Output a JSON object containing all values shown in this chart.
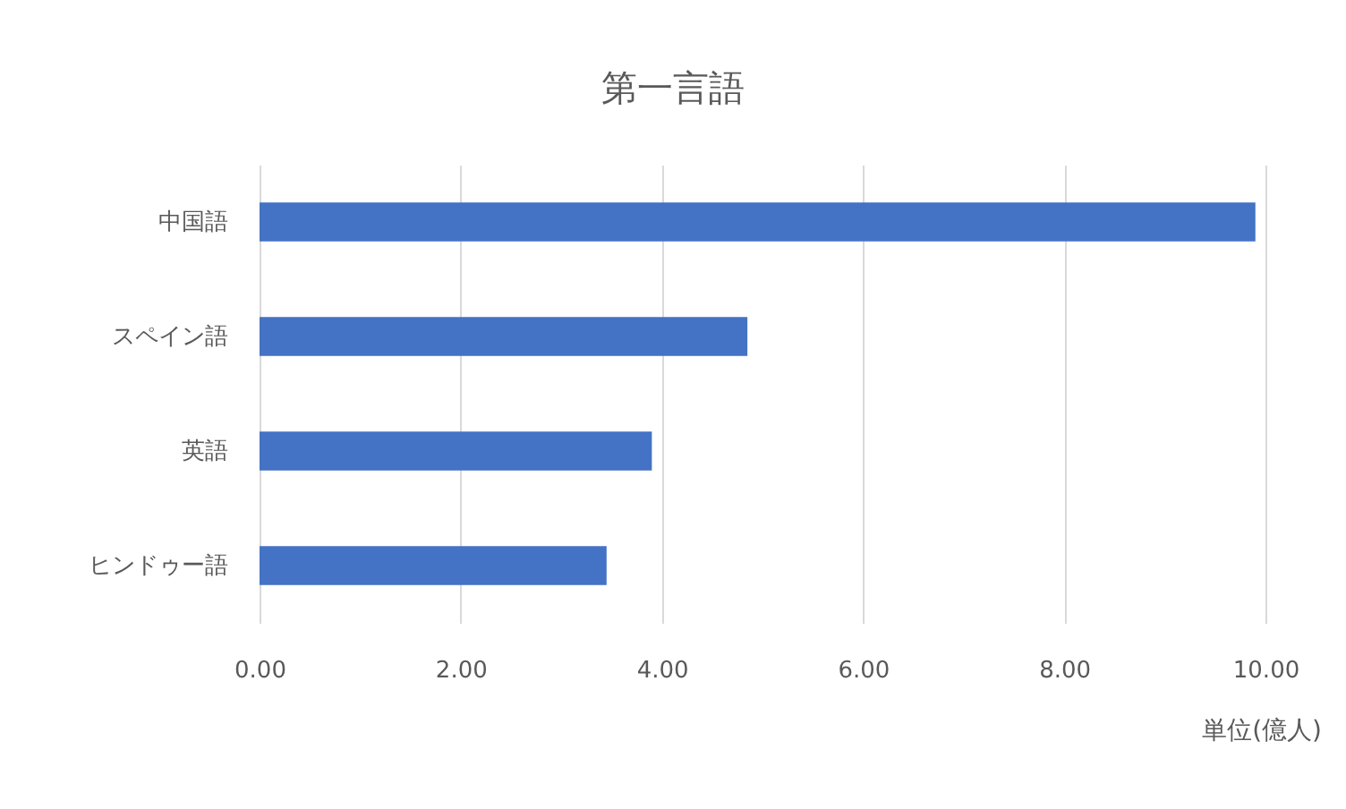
{
  "chart_data": {
    "type": "bar",
    "orientation": "horizontal",
    "title": "第一言語",
    "xlabel": "単位(億人)",
    "categories": [
      "中国語",
      "スペイン語",
      "英語",
      "ヒンドゥー語"
    ],
    "series": [
      {
        "color": "#4472c4",
        "values": [
          9.9,
          4.85,
          3.9,
          3.45
        ]
      }
    ],
    "xlim": [
      0,
      10
    ],
    "xticks": [
      {
        "value": 0,
        "label": "0.00"
      },
      {
        "value": 2,
        "label": "2.00"
      },
      {
        "value": 4,
        "label": "4.00"
      },
      {
        "value": 6,
        "label": "6.00"
      },
      {
        "value": 8,
        "label": "8.00"
      },
      {
        "value": 10,
        "label": "10.00"
      }
    ],
    "grid": "x"
  }
}
